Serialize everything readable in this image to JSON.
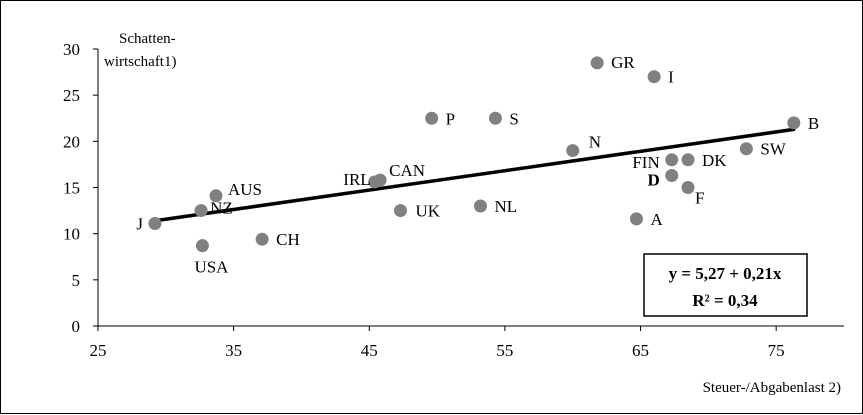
{
  "chart_data": {
    "type": "scatter",
    "xlabel": "Steuer-/Abgabenlast 2)",
    "ylabel_line1": "Schatten-",
    "ylabel_line2": "wirtschaft1)",
    "xlim": [
      25,
      80
    ],
    "ylim": [
      0,
      30
    ],
    "xticks": [
      25,
      35,
      45,
      55,
      65,
      75
    ],
    "yticks": [
      0,
      5,
      10,
      15,
      20,
      25,
      30
    ],
    "grid": false,
    "points": [
      {
        "label": "J",
        "x": 29.2,
        "y": 11.1
      },
      {
        "label": "AUS",
        "x": 33.7,
        "y": 14.1
      },
      {
        "label": "NZ",
        "x": 32.6,
        "y": 12.5
      },
      {
        "label": "USA",
        "x": 32.7,
        "y": 8.7
      },
      {
        "label": "CH",
        "x": 37.1,
        "y": 9.4
      },
      {
        "label": "IRL",
        "x": 45.4,
        "y": 15.6
      },
      {
        "label": "CAN",
        "x": 45.8,
        "y": 15.8
      },
      {
        "label": "UK",
        "x": 47.3,
        "y": 12.5
      },
      {
        "label": "P",
        "x": 49.6,
        "y": 22.5
      },
      {
        "label": "S",
        "x": 54.3,
        "y": 22.5
      },
      {
        "label": "NL",
        "x": 53.2,
        "y": 13.0
      },
      {
        "label": "N",
        "x": 60.0,
        "y": 19.0
      },
      {
        "label": "GR",
        "x": 61.8,
        "y": 28.5
      },
      {
        "label": "I",
        "x": 66.0,
        "y": 27.0
      },
      {
        "label": "A",
        "x": 64.7,
        "y": 11.6
      },
      {
        "label": "FIN",
        "x": 67.3,
        "y": 18.0
      },
      {
        "label": "DK",
        "x": 68.5,
        "y": 18.0
      },
      {
        "label": "D",
        "x": 67.3,
        "y": 16.3
      },
      {
        "label": "F",
        "x": 68.5,
        "y": 15.0
      },
      {
        "label": "SW",
        "x": 72.8,
        "y": 19.2
      },
      {
        "label": "B",
        "x": 76.3,
        "y": 22.0
      }
    ],
    "trendline": {
      "intercept": 5.27,
      "slope": 0.21,
      "x_from": 29.2,
      "x_to": 76.3
    },
    "formula_line1": "y = 5,27 + 0,21x",
    "formula_line2": "R² = 0,34",
    "colors": {
      "point": "#808080",
      "line": "#000000",
      "axis": "#000000"
    }
  }
}
